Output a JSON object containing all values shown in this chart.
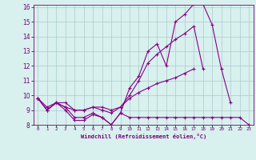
{
  "xlabel": "Windchill (Refroidissement éolien,°C)",
  "background_color": "#d8f0ee",
  "line_color": "#880088",
  "grid_color": "#aacccc",
  "x_values": [
    0,
    1,
    2,
    3,
    4,
    5,
    6,
    7,
    8,
    9,
    10,
    11,
    12,
    13,
    14,
    15,
    16,
    17,
    18,
    19,
    20,
    21,
    22,
    23
  ],
  "series1": [
    9.8,
    9.0,
    9.5,
    9.0,
    8.3,
    8.3,
    8.7,
    8.5,
    8.0,
    8.8,
    8.5,
    8.5,
    8.5,
    8.5,
    8.5,
    8.5,
    8.5,
    8.5,
    8.5,
    8.5,
    8.5,
    8.5,
    8.5,
    8.0
  ],
  "series2": [
    9.8,
    9.0,
    9.5,
    9.2,
    8.5,
    8.5,
    8.8,
    8.5,
    8.0,
    8.8,
    10.5,
    11.3,
    13.0,
    13.5,
    12.0,
    15.0,
    15.5,
    16.2,
    16.2,
    14.8,
    11.8,
    9.5,
    null,
    null
  ],
  "series3": [
    9.8,
    9.0,
    9.5,
    9.5,
    9.0,
    9.0,
    9.2,
    9.0,
    8.8,
    9.2,
    10.0,
    11.0,
    12.2,
    12.8,
    13.3,
    13.8,
    14.2,
    14.7,
    11.8,
    null,
    null,
    null,
    null,
    null
  ],
  "series4": [
    9.8,
    9.2,
    9.5,
    9.2,
    9.0,
    9.0,
    9.2,
    9.2,
    9.0,
    9.2,
    9.8,
    10.2,
    10.5,
    10.8,
    11.0,
    11.2,
    11.5,
    11.8,
    null,
    null,
    null,
    null,
    null,
    null
  ],
  "ylim": [
    8,
    16
  ],
  "xlim_min": -0.5,
  "xlim_max": 23.5,
  "yticks": [
    8,
    9,
    10,
    11,
    12,
    13,
    14,
    15,
    16
  ],
  "xticks": [
    0,
    1,
    2,
    3,
    4,
    5,
    6,
    7,
    8,
    9,
    10,
    11,
    12,
    13,
    14,
    15,
    16,
    17,
    18,
    19,
    20,
    21,
    22,
    23
  ],
  "tick_color": "#770077",
  "label_color": "#770077"
}
